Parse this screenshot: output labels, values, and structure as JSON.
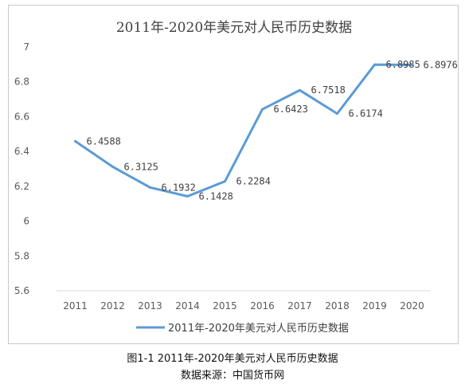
{
  "chart_data": {
    "type": "line",
    "title": "2011年-2020年美元对人民币历史数据",
    "categories": [
      "2011",
      "2012",
      "2013",
      "2014",
      "2015",
      "2016",
      "2017",
      "2018",
      "2019",
      "2020"
    ],
    "series": [
      {
        "name": "2011年-2020年美元对人民币历史数据",
        "values": [
          6.4588,
          6.3125,
          6.1932,
          6.1428,
          6.2284,
          6.6423,
          6.7518,
          6.6174,
          6.8985,
          6.8976
        ],
        "labels": [
          "6.4588",
          "6.3125",
          "6.1932",
          "6.1428",
          "6.2284",
          "6.6423",
          "6.7518",
          "6.6174",
          "6.8985",
          "6.8976"
        ],
        "color": "#5b9bd5"
      }
    ],
    "yticks": [
      "5.6",
      "5.8",
      "6",
      "6.2",
      "6.4",
      "6.6",
      "6.8",
      "7"
    ],
    "ylim": [
      5.6,
      7.0
    ],
    "grid": false,
    "legend": "bottom"
  },
  "captions": {
    "figure": "图1-1 2011年-2020年美元对人民币历史数据",
    "source": "数据来源：中国货币网"
  }
}
